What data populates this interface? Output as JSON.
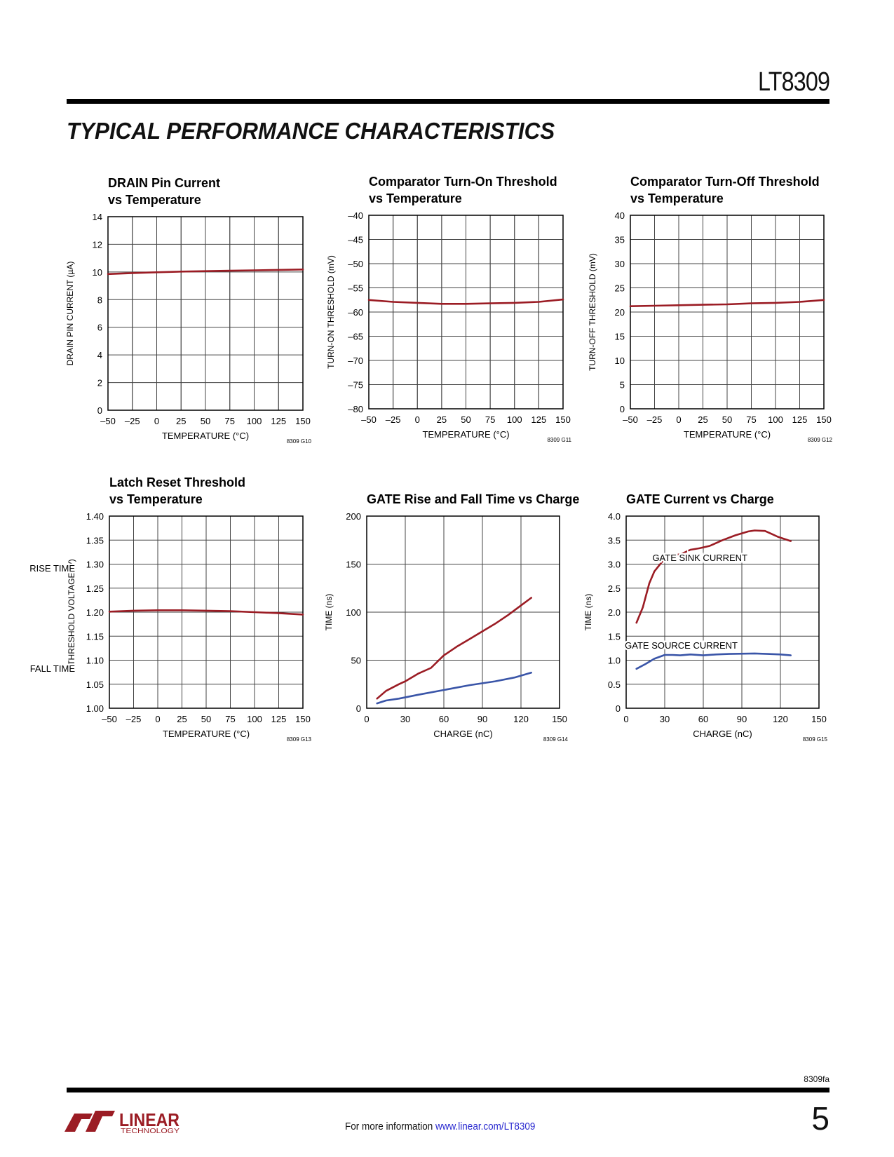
{
  "header": {
    "part_number": "LT8309",
    "section_title": "TYPICAL PERFORMANCE CHARACTERISTICS"
  },
  "footer": {
    "doc_id": "8309fa",
    "page_number": "5",
    "info_text": "For more information ",
    "link_text": "www.linear.com/LT8309",
    "logo_text": "LINEAR TECHNOLOGY",
    "logo_color": "#9b1c24"
  },
  "chart_data": [
    {
      "type": "line",
      "title_lines": [
        "DRAIN Pin Current",
        "vs Temperature"
      ],
      "xlabel": "TEMPERATURE (°C)",
      "ylabel": "DRAIN PIN CURRENT (µA)",
      "fig_code": "8309 G10",
      "xlim": [
        -50,
        150
      ],
      "ylim": [
        0,
        14
      ],
      "xticks": [
        "–50",
        "–25",
        "0",
        "25",
        "50",
        "75",
        "100",
        "125",
        "150"
      ],
      "xtick_values": [
        -50,
        -25,
        0,
        25,
        50,
        75,
        100,
        125,
        150
      ],
      "yticks": [
        "0",
        "2",
        "4",
        "6",
        "8",
        "10",
        "12",
        "14"
      ],
      "ytick_values": [
        0,
        2,
        4,
        6,
        8,
        10,
        12,
        14
      ],
      "grid": true,
      "series": [
        {
          "color": "#9b1c24",
          "x": [
            -50,
            -25,
            0,
            25,
            50,
            75,
            100,
            125,
            150
          ],
          "y": [
            9.85,
            9.92,
            9.98,
            10.03,
            10.06,
            10.09,
            10.12,
            10.15,
            10.18
          ]
        }
      ]
    },
    {
      "type": "line",
      "title_lines": [
        "Comparator Turn-On Threshold",
        "vs Temperature"
      ],
      "xlabel": "TEMPERATURE (°C)",
      "ylabel": "TURN-ON THRESHOLD (mV)",
      "fig_code": "8309 G11",
      "xlim": [
        -50,
        150
      ],
      "ylim": [
        -80,
        -40
      ],
      "xticks": [
        "–50",
        "–25",
        "0",
        "25",
        "50",
        "75",
        "100",
        "125",
        "150"
      ],
      "xtick_values": [
        -50,
        -25,
        0,
        25,
        50,
        75,
        100,
        125,
        150
      ],
      "yticks": [
        "–80",
        "–75",
        "–70",
        "–65",
        "–60",
        "–55",
        "–50",
        "–45",
        "–40"
      ],
      "ytick_values": [
        -80,
        -75,
        -70,
        -65,
        -60,
        -55,
        -50,
        -45,
        -40
      ],
      "grid": true,
      "series": [
        {
          "color": "#9b1c24",
          "x": [
            -50,
            -25,
            0,
            25,
            50,
            75,
            100,
            125,
            150
          ],
          "y": [
            -57.5,
            -57.9,
            -58.1,
            -58.3,
            -58.3,
            -58.2,
            -58.1,
            -57.9,
            -57.4
          ]
        }
      ]
    },
    {
      "type": "line",
      "title_lines": [
        "Comparator Turn-Off Threshold",
        "vs Temperature"
      ],
      "xlabel": "TEMPERATURE (°C)",
      "ylabel": "TURN-OFF THRESHOLD (mV)",
      "fig_code": "8309 G12",
      "xlim": [
        -50,
        150
      ],
      "ylim": [
        0,
        40
      ],
      "xticks": [
        "–50",
        "–25",
        "0",
        "25",
        "50",
        "75",
        "100",
        "125",
        "150"
      ],
      "xtick_values": [
        -50,
        -25,
        0,
        25,
        50,
        75,
        100,
        125,
        150
      ],
      "yticks": [
        "0",
        "5",
        "10",
        "15",
        "20",
        "25",
        "30",
        "35",
        "40"
      ],
      "ytick_values": [
        0,
        5,
        10,
        15,
        20,
        25,
        30,
        35,
        40
      ],
      "grid": true,
      "series": [
        {
          "color": "#9b1c24",
          "x": [
            -50,
            -25,
            0,
            25,
            50,
            75,
            100,
            125,
            150
          ],
          "y": [
            21.2,
            21.3,
            21.4,
            21.5,
            21.6,
            21.8,
            21.9,
            22.1,
            22.5
          ]
        }
      ]
    },
    {
      "type": "line",
      "title_lines": [
        "Latch Reset Threshold",
        "vs Temperature"
      ],
      "xlabel": "TEMPERATURE (°C)",
      "ylabel": "THRESHOLD VOLTAGE (V)",
      "fig_code": "8309 G13",
      "xlim": [
        -50,
        150
      ],
      "ylim": [
        1.0,
        1.4
      ],
      "xticks": [
        "–50",
        "–25",
        "0",
        "25",
        "50",
        "75",
        "100",
        "125",
        "150"
      ],
      "xtick_values": [
        -50,
        -25,
        0,
        25,
        50,
        75,
        100,
        125,
        150
      ],
      "yticks": [
        "1.00",
        "1.05",
        "1.10",
        "1.15",
        "1.20",
        "1.25",
        "1.30",
        "1.35",
        "1.40"
      ],
      "ytick_values": [
        1.0,
        1.05,
        1.1,
        1.15,
        1.2,
        1.25,
        1.3,
        1.35,
        1.4
      ],
      "grid": true,
      "series": [
        {
          "color": "#9b1c24",
          "x": [
            -50,
            -25,
            0,
            25,
            50,
            75,
            100,
            125,
            150
          ],
          "y": [
            1.201,
            1.203,
            1.204,
            1.204,
            1.203,
            1.202,
            1.2,
            1.198,
            1.195
          ]
        }
      ]
    },
    {
      "type": "line",
      "title_lines": [
        "GATE Rise and Fall Time vs Charge"
      ],
      "xlabel": "CHARGE (nC)",
      "ylabel": "TIME (ns)",
      "fig_code": "8309 G14",
      "xlim": [
        0,
        150
      ],
      "ylim": [
        0,
        200
      ],
      "xticks": [
        "0",
        "30",
        "60",
        "90",
        "120",
        "150"
      ],
      "xtick_values": [
        0,
        30,
        60,
        90,
        120,
        150
      ],
      "yticks": [
        "0",
        "50",
        "100",
        "150",
        "200"
      ],
      "ytick_values": [
        0,
        50,
        100,
        150,
        200
      ],
      "grid": true,
      "series": [
        {
          "name": "RISE TIME",
          "color": "#9b1c24",
          "x": [
            8,
            15,
            25,
            30,
            40,
            50,
            60,
            70,
            80,
            90,
            100,
            110,
            120,
            128
          ],
          "y": [
            10,
            18,
            25,
            28,
            36,
            42,
            55,
            64,
            72,
            80,
            88,
            97,
            107,
            115
          ]
        },
        {
          "name": "FALL TIME",
          "color": "#3a55a8",
          "x": [
            8,
            15,
            25,
            40,
            60,
            80,
            100,
            115,
            128
          ],
          "y": [
            5,
            8,
            10,
            14,
            19,
            24,
            28,
            32,
            37
          ]
        }
      ]
    },
    {
      "type": "line",
      "title_lines": [
        "GATE Current vs Charge"
      ],
      "xlabel": "CHARGE (nC)",
      "ylabel": "TIME (ns)",
      "fig_code": "8309 G15",
      "xlim": [
        0,
        150
      ],
      "ylim": [
        0,
        4
      ],
      "xticks": [
        "0",
        "30",
        "60",
        "90",
        "120",
        "150"
      ],
      "xtick_values": [
        0,
        30,
        60,
        90,
        120,
        150
      ],
      "yticks": [
        "0",
        "0.5",
        "1.0",
        "1.5",
        "2.0",
        "2.5",
        "3.0",
        "3.5",
        "4.0"
      ],
      "ytick_values": [
        0,
        0.5,
        1,
        1.5,
        2,
        2.5,
        3,
        3.5,
        4
      ],
      "grid": true,
      "series": [
        {
          "name": "GATE SINK CURRENT",
          "color": "#9b1c24",
          "x": [
            8,
            13,
            18,
            22,
            28,
            35,
            42,
            50,
            57,
            65,
            75,
            85,
            95,
            100,
            108,
            113,
            118,
            128
          ],
          "y": [
            1.78,
            2.1,
            2.6,
            2.85,
            3.05,
            3.2,
            3.2,
            3.3,
            3.33,
            3.38,
            3.5,
            3.6,
            3.68,
            3.7,
            3.69,
            3.63,
            3.57,
            3.48
          ]
        },
        {
          "name": "GATE SOURCE CURRENT",
          "color": "#3a55a8",
          "x": [
            8,
            15,
            22,
            30,
            36,
            42,
            50,
            60,
            70,
            80,
            100,
            110,
            120,
            128
          ],
          "y": [
            0.82,
            0.92,
            1.03,
            1.11,
            1.11,
            1.1,
            1.12,
            1.1,
            1.12,
            1.13,
            1.14,
            1.13,
            1.12,
            1.1
          ]
        }
      ]
    }
  ]
}
